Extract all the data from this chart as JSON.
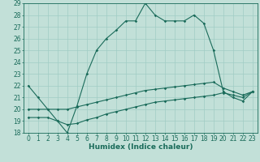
{
  "xlabel": "Humidex (Indice chaleur)",
  "background_color": "#c2e0d8",
  "line_color": "#1a6b5a",
  "xlim": [
    -0.5,
    23.5
  ],
  "ylim": [
    18,
    29
  ],
  "xticks": [
    0,
    1,
    2,
    3,
    4,
    5,
    6,
    7,
    8,
    9,
    10,
    11,
    12,
    13,
    14,
    15,
    16,
    17,
    18,
    19,
    20,
    21,
    22,
    23
  ],
  "yticks": [
    18,
    19,
    20,
    21,
    22,
    23,
    24,
    25,
    26,
    27,
    28,
    29
  ],
  "line1_x": [
    0,
    1,
    2,
    3,
    4,
    5,
    6,
    7,
    8,
    9,
    10,
    11,
    12,
    13,
    14,
    15,
    16,
    17,
    18,
    19,
    20,
    21,
    22,
    23
  ],
  "line1_y": [
    22.0,
    21.0,
    20.0,
    19.0,
    18.0,
    20.3,
    23.0,
    25.0,
    26.0,
    26.7,
    27.5,
    27.5,
    29.0,
    28.0,
    27.5,
    27.5,
    27.5,
    28.0,
    27.3,
    25.0,
    21.5,
    21.0,
    20.7,
    21.5
  ],
  "line2_x": [
    0,
    1,
    2,
    3,
    4,
    5,
    6,
    7,
    8,
    9,
    10,
    11,
    12,
    13,
    14,
    15,
    16,
    17,
    18,
    19,
    20,
    21,
    22,
    23
  ],
  "line2_y": [
    20.0,
    20.0,
    20.0,
    20.0,
    20.0,
    20.2,
    20.4,
    20.6,
    20.8,
    21.0,
    21.2,
    21.4,
    21.6,
    21.7,
    21.8,
    21.9,
    22.0,
    22.1,
    22.2,
    22.3,
    21.8,
    21.5,
    21.2,
    21.5
  ],
  "line3_x": [
    0,
    1,
    2,
    3,
    4,
    5,
    6,
    7,
    8,
    9,
    10,
    11,
    12,
    13,
    14,
    15,
    16,
    17,
    18,
    19,
    20,
    21,
    22,
    23
  ],
  "line3_y": [
    19.3,
    19.3,
    19.3,
    19.0,
    18.7,
    18.8,
    19.1,
    19.3,
    19.6,
    19.8,
    20.0,
    20.2,
    20.4,
    20.6,
    20.7,
    20.8,
    20.9,
    21.0,
    21.1,
    21.2,
    21.4,
    21.2,
    21.0,
    21.5
  ],
  "grid_color": "#a0ccc4",
  "xlabel_fontsize": 6.5,
  "tick_fontsize": 5.5
}
